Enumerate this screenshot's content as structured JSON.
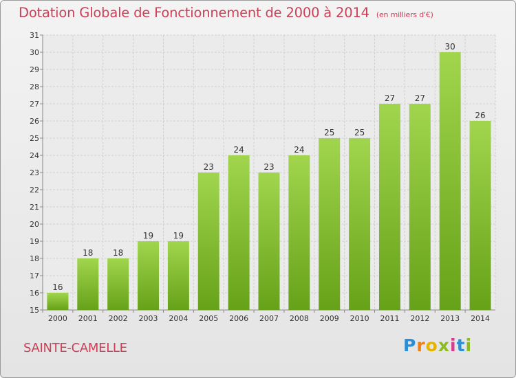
{
  "header": {
    "title": "Dotation Globale de Fonctionnement de 2000 à 2014",
    "subtitle": "(en milliers d'€)"
  },
  "footer": {
    "commune": "SAINTE-CAMELLE",
    "brand": "Proxiti"
  },
  "colors": {
    "title": "#cc3f57",
    "bar_top": "#a1d54e",
    "bar_bottom": "#66a219"
  },
  "chart_data": {
    "type": "bar",
    "categories": [
      "2000",
      "2001",
      "2002",
      "2003",
      "2004",
      "2005",
      "2006",
      "2007",
      "2008",
      "2009",
      "2010",
      "2011",
      "2012",
      "2013",
      "2014"
    ],
    "values": [
      16,
      18,
      18,
      19,
      19,
      23,
      24,
      23,
      24,
      25,
      25,
      27,
      27,
      30,
      26
    ],
    "title": "Dotation Globale de Fonctionnement de 2000 à 2014",
    "subtitle": "(en milliers d'€)",
    "xlabel": "",
    "ylabel": "",
    "ylim": [
      15,
      31
    ],
    "yticks": [
      15,
      16,
      17,
      18,
      19,
      20,
      21,
      22,
      23,
      24,
      25,
      26,
      27,
      28,
      29,
      30,
      31
    ],
    "grid": true,
    "legend": "none",
    "data_labels": true
  }
}
